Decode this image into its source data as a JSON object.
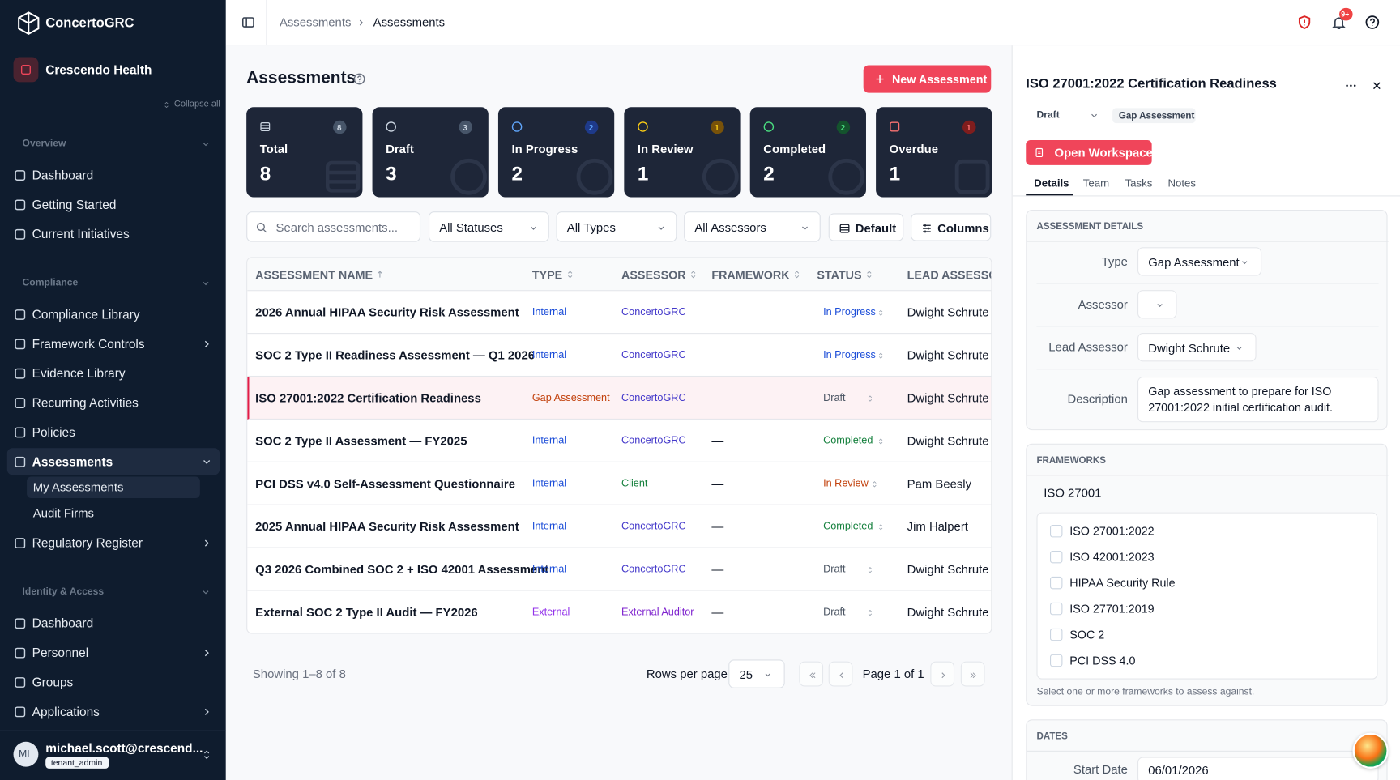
{
  "sidebar": {
    "brand": "ConcertoGRC",
    "org": "Crescendo Health",
    "collapse": "Collapse all",
    "sections": [
      {
        "title": "Overview",
        "items": [
          {
            "label": "Dashboard"
          },
          {
            "label": "Getting Started"
          },
          {
            "label": "Current Initiatives"
          }
        ]
      },
      {
        "title": "Compliance",
        "items": [
          {
            "label": "Compliance Library"
          },
          {
            "label": "Framework Controls",
            "expandable": true
          },
          {
            "label": "Evidence Library"
          },
          {
            "label": "Recurring Activities"
          },
          {
            "label": "Policies"
          },
          {
            "label": "Assessments",
            "expandable": true,
            "active": true,
            "children": [
              {
                "label": "My Assessments",
                "active": true
              },
              {
                "label": "Audit Firms"
              }
            ]
          },
          {
            "label": "Regulatory Register",
            "expandable": true
          }
        ]
      },
      {
        "title": "Identity & Access",
        "items": [
          {
            "label": "Dashboard"
          },
          {
            "label": "Personnel",
            "expandable": true
          },
          {
            "label": "Groups"
          },
          {
            "label": "Applications",
            "expandable": true
          }
        ]
      }
    ],
    "user": {
      "initials": "MI",
      "email": "michael.scott@crescend...",
      "role": "tenant_admin"
    }
  },
  "topbar": {
    "breadcrumb": [
      "Assessments",
      "Assessments"
    ],
    "badge": "9+"
  },
  "main": {
    "title": "Assessments",
    "new_button": "New Assessment",
    "cards": [
      {
        "label": "Total",
        "count": 8
      },
      {
        "label": "Draft",
        "count": 3
      },
      {
        "label": "In Progress",
        "count": 2
      },
      {
        "label": "In Review",
        "count": 1
      },
      {
        "label": "Completed",
        "count": 2
      },
      {
        "label": "Overdue",
        "count": 1
      }
    ],
    "filters": {
      "search": "Search assessments...",
      "selects": [
        "All Statuses",
        "All Types",
        "All Assessors"
      ],
      "buttons": [
        "Default",
        "Columns"
      ]
    },
    "table": {
      "columns": [
        "ASSESSMENT NAME",
        "TYPE",
        "ASSESSOR",
        "FRAMEWORK",
        "STATUS",
        "LEAD ASSESSOR"
      ],
      "rows": [
        [
          "2026 Annual HIPAA Security Risk Assessment",
          "Internal",
          "ConcertoGRC",
          "—",
          "In Progress",
          "Dwight Schrute"
        ],
        [
          "SOC 2 Type II Readiness Assessment — Q1 2026",
          "Internal",
          "ConcertoGRC",
          "—",
          "In Progress",
          "Dwight Schrute"
        ],
        [
          "ISO 27001:2022 Certification Readiness",
          "Gap Assessment",
          "ConcertoGRC",
          "—",
          "Draft",
          "Dwight Schrute"
        ],
        [
          "SOC 2 Type II Assessment — FY2025",
          "Internal",
          "ConcertoGRC",
          "—",
          "Completed",
          "Dwight Schrute"
        ],
        [
          "PCI DSS v4.0 Self-Assessment Questionnaire",
          "Internal",
          "Client",
          "—",
          "In Review",
          "Pam Beesly"
        ],
        [
          "2025 Annual HIPAA Security Risk Assessment",
          "Internal",
          "ConcertoGRC",
          "—",
          "Completed",
          "Jim Halpert"
        ],
        [
          "Q3 2026 Combined SOC 2 + ISO 42001 Assessment",
          "Internal",
          "ConcertoGRC",
          "—",
          "Draft",
          "Dwight Schrute"
        ],
        [
          "External SOC 2 Type II Audit — FY2026",
          "External",
          "External Auditor",
          "—",
          "Draft",
          "Dwight Schrute"
        ]
      ]
    },
    "footer": {
      "showing": "Showing 1–8 of 8",
      "rows_label": "Rows per page",
      "rows_value": "25",
      "page": "Page 1 of 1"
    }
  },
  "panel": {
    "title": "ISO 27001:2022 Certification Readiness",
    "status": "Draft",
    "type_badge": "Gap Assessment",
    "workspace_button": "Open Workspace",
    "tabs": [
      "Details",
      "Team",
      "Tasks",
      "Notes"
    ],
    "details": {
      "heading": "ASSESSMENT DETAILS",
      "fields": [
        {
          "label": "Type",
          "value": "Gap Assessment"
        },
        {
          "label": "Assessor"
        },
        {
          "label": "Lead Assessor",
          "value": "Dwight Schrute"
        },
        {
          "label": "Description",
          "value": "Gap assessment to prepare for ISO 27001:2022 initial certification audit."
        }
      ]
    },
    "frameworks": {
      "heading": "FRAMEWORKS",
      "search": "ISO 27001",
      "options": [
        "ISO 27001:2022",
        "ISO 42001:2023",
        "HIPAA Security Rule",
        "ISO 27701:2019",
        "SOC 2",
        "PCI DSS 4.0"
      ],
      "hint": "Select one or more frameworks to assess against."
    },
    "dates": {
      "heading": "DATES",
      "fields": [
        {
          "label": "Start Date",
          "value": "06/01/2026"
        }
      ]
    }
  }
}
